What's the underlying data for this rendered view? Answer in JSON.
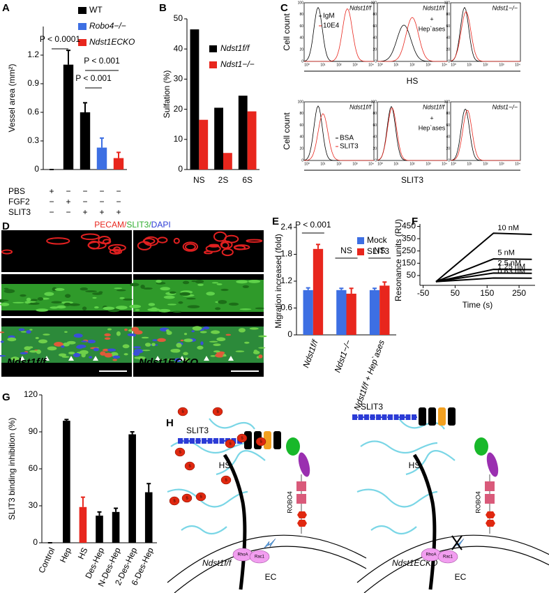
{
  "panel_labels": [
    "A",
    "B",
    "C",
    "D",
    "E",
    "F",
    "G",
    "H"
  ],
  "chart_data": [
    {
      "type": "bar",
      "ylabel": "Vessel area (mm²)",
      "categories": [
        null,
        null,
        null,
        null,
        null
      ],
      "values": [
        0,
        1.1,
        0.6,
        0.23,
        0.12
      ],
      "errors": [
        0,
        0.15,
        0.1,
        0.1,
        0.06
      ],
      "colors": [
        "#000000",
        "#000000",
        "#000000",
        "#3d6fe3",
        "#e8261d"
      ],
      "ylim": [
        0,
        1.5
      ],
      "yticks": [
        0,
        0.3,
        0.6,
        0.9,
        1.2
      ],
      "legend": [
        {
          "name": "WT",
          "color": "#000000"
        },
        {
          "name": "Robo4−/−",
          "color": "#3d6fe3"
        },
        {
          "name": "Ndst1ECKO",
          "color": "#e8261d"
        }
      ],
      "annotations": [
        "P < 0.0001",
        "P < 0.001",
        "P < 0.001"
      ],
      "treatments": [
        {
          "name": "PBS",
          "signs": [
            "+",
            "−",
            "−",
            "−",
            "−"
          ]
        },
        {
          "name": "FGF2",
          "signs": [
            "−",
            "+",
            "−",
            "−",
            "−"
          ]
        },
        {
          "name": "SLIT3",
          "signs": [
            "−",
            "−",
            "+",
            "+",
            "+"
          ]
        }
      ]
    },
    {
      "type": "bar",
      "ylabel": "Sulfation (%)",
      "categories": [
        "NS",
        "2S",
        "6S"
      ],
      "series": [
        {
          "name": "Ndst1f/f",
          "color": "#000000",
          "values": [
            46.5,
            20.5,
            24.5
          ]
        },
        {
          "name": "Ndst1−/−",
          "color": "#e8261d",
          "values": [
            16.5,
            5.5,
            19.3
          ]
        }
      ],
      "ylim": [
        0,
        50
      ],
      "yticks": [
        0,
        10,
        20,
        30,
        40,
        50
      ]
    },
    {
      "type": "bar",
      "ylabel": "Migration increased (fold)",
      "categories": [
        "Ndst1f/f",
        "Ndst1−/−",
        "Ndst1f/f + Hep`ases"
      ],
      "series": [
        {
          "name": "Mock",
          "color": "#3d6fe3",
          "values": [
            1.0,
            1.0,
            1.0
          ],
          "errors": [
            0.05,
            0.04,
            0.04
          ]
        },
        {
          "name": "SLIT3",
          "color": "#e8261d",
          "values": [
            1.92,
            0.92,
            1.1
          ],
          "errors": [
            0.1,
            0.12,
            0.08
          ]
        }
      ],
      "ylim": [
        0,
        2.4
      ],
      "yticks": [
        0,
        0.6,
        1.2,
        1.8,
        2.4
      ],
      "annotations": [
        "P < 0.001",
        "NS",
        "NS"
      ]
    },
    {
      "type": "line",
      "xlabel": "Time (s)",
      "ylabel": "Resonance units (RU)",
      "x": [
        -10,
        170,
        290
      ],
      "series": [
        {
          "name": "10 nM",
          "color": "#000000",
          "values": [
            0,
            395,
            385
          ]
        },
        {
          "name": "5 nM",
          "color": "#000000",
          "values": [
            0,
            185,
            182
          ]
        },
        {
          "name": "2.5 nM",
          "color": "#000000",
          "values": [
            0,
            100,
            98
          ]
        },
        {
          "name": "1.25 nM",
          "color": "#000000",
          "values": [
            0,
            70,
            68
          ]
        },
        {
          "name": "0.63 nM",
          "color": "#000000",
          "values": [
            0,
            30,
            28
          ]
        }
      ],
      "xlim": [
        -60,
        300
      ],
      "xticks": [
        -50,
        50,
        150,
        250
      ],
      "ylim": [
        -30,
        470
      ],
      "yticks": [
        50,
        150,
        250,
        350,
        450
      ]
    },
    {
      "type": "bar",
      "ylabel": "SLIT3 binding inhibition (%)",
      "categories": [
        "Control",
        "Hep",
        "HS",
        "Des-Hep",
        "N-Des-Hep",
        "2-Des-Hep",
        "6-Des-Hep"
      ],
      "values": [
        0,
        99,
        29,
        22,
        25,
        88,
        41
      ],
      "errors": [
        0,
        1,
        8,
        3,
        3,
        2,
        7
      ],
      "colors": [
        "#000000",
        "#000000",
        "#e8261d",
        "#000000",
        "#000000",
        "#000000",
        "#000000"
      ],
      "ylim": [
        0,
        120
      ],
      "yticks": [
        0,
        30,
        60,
        90,
        120
      ]
    }
  ],
  "flow": {
    "ylabel": "Cell count",
    "hist_yticks": [
      0,
      20,
      40,
      60,
      80,
      100
    ],
    "hist_xticks": [
      "10⁰",
      "10¹",
      "10²",
      "10³",
      "10⁴"
    ],
    "rows": [
      {
        "xlabel": "HS",
        "controls": [
          "IgM",
          "10E4"
        ],
        "panels": [
          {
            "title": "Ndst1f/f"
          },
          {
            "title": "Ndst1f/f",
            "treatment": [
              "+",
              "Hep`ases"
            ]
          },
          {
            "title": "Ndst1−/−"
          }
        ]
      },
      {
        "xlabel": "SLIT3",
        "controls": [
          "BSA",
          "SLIT3"
        ],
        "panels": [
          {
            "title": "Ndst1f/f"
          },
          {
            "title": "Ndst1f/f",
            "treatment": [
              "+",
              "Hep`ases"
            ]
          },
          {
            "title": "Ndst1−/−"
          }
        ]
      }
    ]
  },
  "immunostain": {
    "title": [
      "PECAM/",
      "SLIT3/",
      "DAPI"
    ],
    "samples": [
      "Ndst1f/f",
      "Ndst1ECKO"
    ]
  },
  "diagram": {
    "sulfate": "S",
    "left": {
      "ligand": "SLIT3",
      "glycan": "HS",
      "receptor": "ROBO4",
      "gtpases": [
        "RhoA",
        "Rac1"
      ],
      "genotype": "Ndst1f/f",
      "cell": "EC"
    },
    "right": {
      "ligand": "SLIT3",
      "glycan": "HS",
      "receptor": "ROBO4",
      "gtpases": [
        "RhoA",
        "Rac1"
      ],
      "genotype": "Ndst1ECKO",
      "cell": "EC"
    }
  }
}
